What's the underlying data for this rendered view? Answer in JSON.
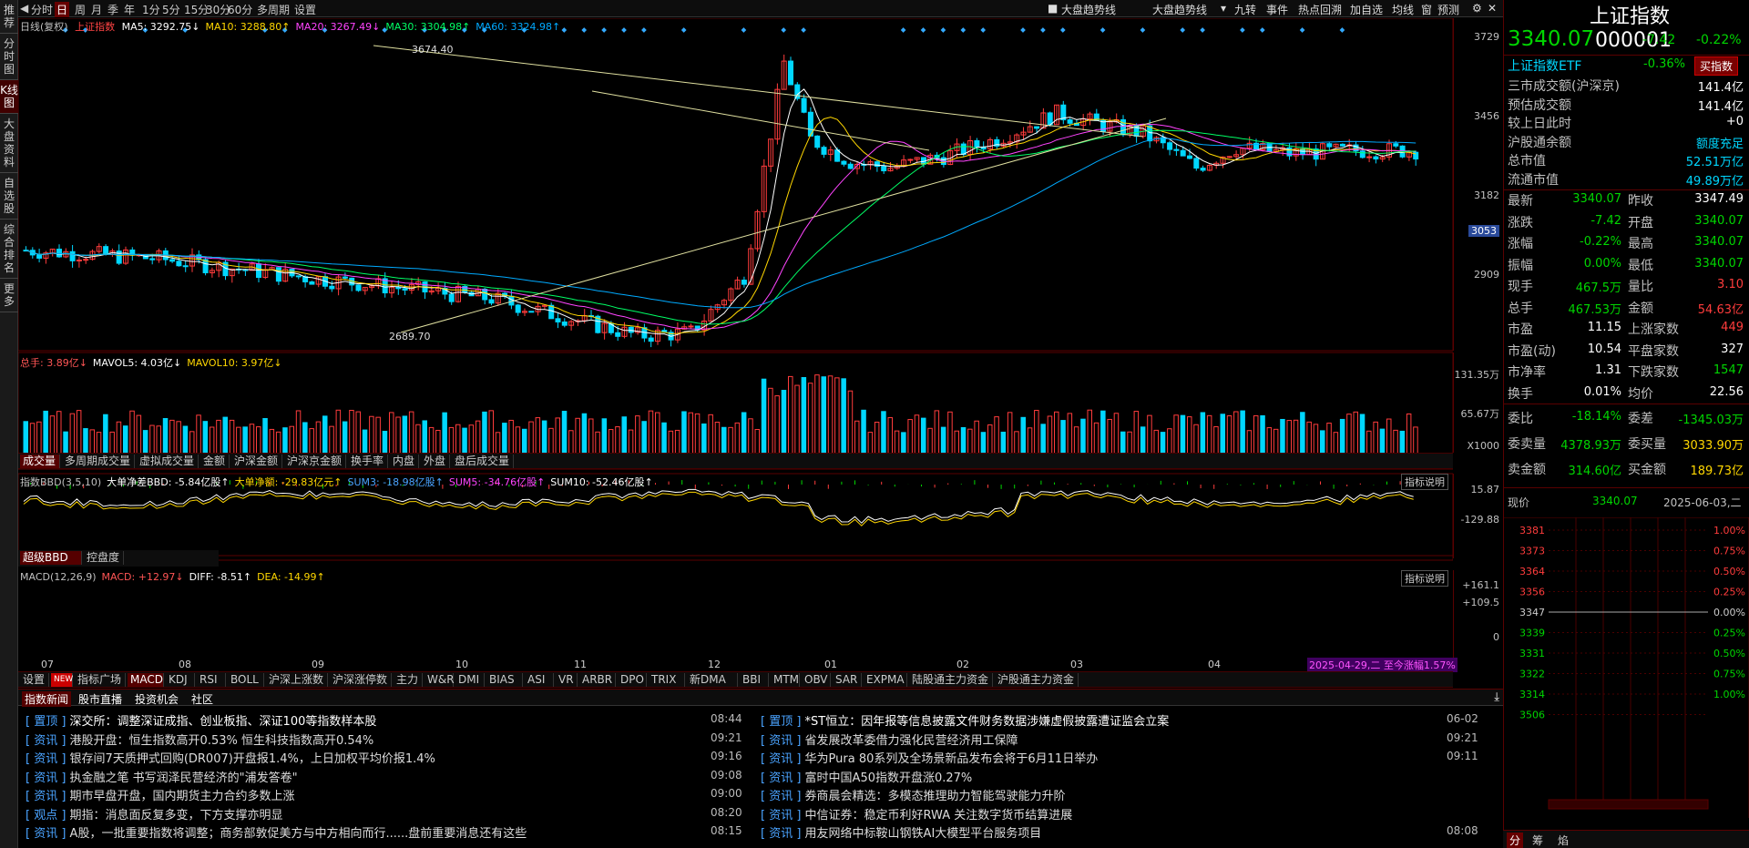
{
  "sidebar": [
    "推荐",
    "分时图",
    "K线图",
    "大盘资料",
    "自选股",
    "综合排名",
    "更多"
  ],
  "toolbar": {
    "periods": [
      "分时",
      "日",
      "周",
      "月",
      "季",
      "年",
      "1分",
      "5分",
      "15分",
      "30分",
      "60分",
      "多周期",
      "设置"
    ],
    "right": [
      "大盘趋势线",
      "大盘趋势线",
      "九转",
      "事件",
      "热点回溯",
      "加自选",
      "均线",
      "窗",
      "预测"
    ]
  },
  "kline": {
    "title": "日线(复权)",
    "name": "上证指数",
    "ma": [
      {
        "label": "MA5: 3292.75↓",
        "color": "#ffffff"
      },
      {
        "label": "MA10: 3288.80↑",
        "color": "#ffd700"
      },
      {
        "label": "MA20: 3267.49↓",
        "color": "#ff44ff"
      },
      {
        "label": "MA30: 3304.98↑",
        "color": "#00ff66"
      },
      {
        "label": "MA60: 3324.98↑",
        "color": "#00aaff"
      }
    ],
    "hi_label": "3674.40",
    "lo_label": "2689.70",
    "axis": [
      {
        "v": "3729",
        "y": 41
      },
      {
        "v": "3456",
        "y": 128
      },
      {
        "v": "3182",
        "y": 215
      },
      {
        "v": "3053",
        "y": 254
      },
      {
        "v": "2909",
        "y": 302
      }
    ],
    "axis_hl": "3053"
  },
  "volume": {
    "info": [
      {
        "t": "总手: 3.89亿↓",
        "c": "#ff5555"
      },
      {
        "t": "MAVOL5: 4.03亿↓",
        "c": "#ffffff"
      },
      {
        "t": "MAVOL10: 3.97亿↓",
        "c": "#ffd700"
      }
    ],
    "axis": [
      {
        "v": "131.35万",
        "y": 410
      },
      {
        "v": "65.67万",
        "y": 453
      },
      {
        "v": "X1000",
        "y": 490
      }
    ],
    "tabs": [
      "成交量",
      "多周期成交量",
      "虚拟成交量",
      "金额",
      "沪深金额",
      "沪深京金额",
      "换手率",
      "内盘",
      "外盘",
      "盘后成交量"
    ]
  },
  "bbd": {
    "info": [
      {
        "t": "指数BBD(3,5,10)",
        "c": "#c0c0c0"
      },
      {
        "t": "大单净差BBD: -5.84亿股↑",
        "c": "#ffffff"
      },
      {
        "t": "大单净额: -29.83亿元↑",
        "c": "#ffd700"
      },
      {
        "t": "SUM3: -18.98亿股↑",
        "c": "#4aa3ff"
      },
      {
        "t": "SUM5: -34.76亿股↑",
        "c": "#ff44ff"
      },
      {
        "t": "SUM10: -52.46亿股↑",
        "c": "#ffffff"
      }
    ],
    "help": "指标说明",
    "axis": [
      {
        "v": "15.87",
        "y": 538
      },
      {
        "v": "-129.88",
        "y": 571
      }
    ],
    "tabs": [
      "超级BBD",
      "控盘度"
    ]
  },
  "macd": {
    "info": [
      {
        "t": "MACD(12,26,9)",
        "c": "#c0c0c0"
      },
      {
        "t": "MACD: +12.97↓",
        "c": "#ff5555"
      },
      {
        "t": "DIFF: -8.51↑",
        "c": "#ffffff"
      },
      {
        "t": "DEA: -14.99↑",
        "c": "#ffd700"
      }
    ],
    "help": "指标说明",
    "axis": [
      {
        "v": "+161.1",
        "y": 643
      },
      {
        "v": "+109.5",
        "y": 662
      },
      {
        "v": "0",
        "y": 700
      }
    ],
    "months": [
      {
        "m": "07",
        "x": 25
      },
      {
        "m": "08",
        "x": 176
      },
      {
        "m": "09",
        "x": 322
      },
      {
        "m": "10",
        "x": 480
      },
      {
        "m": "11",
        "x": 610
      },
      {
        "m": "12",
        "x": 757
      },
      {
        "m": "01",
        "x": 885
      },
      {
        "m": "02",
        "x": 1030
      },
      {
        "m": "03",
        "x": 1155
      },
      {
        "m": "04",
        "x": 1306
      }
    ],
    "date_tag": "2025-04-29,二 至今涨幅1.57%",
    "tabs": [
      "设置",
      "NEW",
      "指标广场",
      "MACD",
      "KDJ",
      "RSI",
      "BOLL",
      "沪深上涨数",
      "沪深涨停数",
      "主力",
      "W&R",
      "DMI",
      "BIAS",
      "ASI",
      "VR",
      "ARBR",
      "DPO",
      "TRIX",
      "新DMA",
      "BBI",
      "MTM",
      "OBV",
      "SAR",
      "EXPMA",
      "陆股通主力资金",
      "沪股通主力资金"
    ]
  },
  "quote": {
    "title": "上证指数",
    "code": "000001",
    "price": "3340.07",
    "change": "-7.42",
    "pct": "-0.22%",
    "etf": "上证指数ETF",
    "etf_pct": "-0.36%",
    "buy_btn": "买指数",
    "stats": [
      [
        "三市成交额(沪深京)",
        "141.4亿"
      ],
      [
        "预估成交额",
        "141.4亿"
      ],
      [
        "较上日此时",
        "+0"
      ],
      [
        "沪股通余额",
        "额度充足"
      ],
      [
        "总市值",
        "52.51万亿"
      ],
      [
        "流通市值",
        "49.89万亿"
      ]
    ],
    "grid": [
      [
        "最新",
        "3340.07",
        "昨收",
        "3347.49"
      ],
      [
        "涨跌",
        "-7.42",
        "开盘",
        "3340.07"
      ],
      [
        "涨幅",
        "-0.22%",
        "最高",
        "3340.07"
      ],
      [
        "振幅",
        "0.00%",
        "最低",
        "3340.07"
      ],
      [
        "现手",
        "467.5万",
        "量比",
        "3.10"
      ],
      [
        "总手",
        "467.53万",
        "金额",
        "54.63亿"
      ],
      [
        "市盈",
        "11.15",
        "上涨家数",
        "449"
      ],
      [
        "市盈(动)",
        "10.54",
        "平盘家数",
        "327"
      ],
      [
        "市净率",
        "1.31",
        "下跌家数",
        "1547"
      ],
      [
        "换手",
        "0.01%",
        "均价",
        "22.56"
      ]
    ],
    "bid": [
      [
        "委比",
        "-18.14%",
        "委差",
        "-1345.03万"
      ],
      [
        "委卖量",
        "4378.93万",
        "委买量",
        "3033.90万"
      ],
      [
        "卖金额",
        "314.60亿",
        "买金额",
        "189.73亿"
      ]
    ],
    "mini_head": [
      "现价",
      "3340.07",
      "2025-06-03,二"
    ],
    "mini_left": [
      "3381",
      "3373",
      "3364",
      "3356",
      "3347",
      "3339",
      "3331",
      "3322",
      "3314",
      "3506"
    ],
    "mini_right": [
      "1.00%",
      "0.75%",
      "0.50%",
      "0.25%",
      "0.00%",
      "0.25%",
      "0.50%",
      "0.75%",
      "1.00%"
    ],
    "bottom_tabs": [
      "分",
      "筹",
      "焰"
    ]
  },
  "news": {
    "tabs": [
      "指数新闻",
      "股市直播",
      "投资机会",
      "社区"
    ],
    "left": [
      {
        "tag": "置顶",
        "text": "深交所：调整深证成指、创业板指、深证100等指数样本股",
        "time": "08:44"
      },
      {
        "tag": "资讯",
        "text": "港股开盘：恒生指数高开0.53% 恒生科技指数高开0.54%",
        "time": "09:21"
      },
      {
        "tag": "资讯",
        "text": "银存间7天质押式回购(DR007)开盘报1.4%，上日加权平均价报1.4%",
        "time": "09:16"
      },
      {
        "tag": "资讯",
        "text": "执金融之笔 书写润泽民营经济的\"浦发答卷\"",
        "time": "09:08"
      },
      {
        "tag": "资讯",
        "text": "期市早盘开盘，国内期货主力合约多数上涨",
        "time": "09:00"
      },
      {
        "tag": "观点",
        "text": "期指：消息面反复多变，下方支撑亦明显",
        "time": "08:20"
      },
      {
        "tag": "资讯",
        "text": "A股，一批重要指数将调整；商务部敦促美方与中方相向而行......盘前重要消息还有这些",
        "time": "08:15"
      }
    ],
    "right": [
      {
        "tag": "置顶",
        "text": "*ST恒立：因年报等信息披露文件财务数据涉嫌虚假披露遭证监会立案",
        "time": "06-02"
      },
      {
        "tag": "资讯",
        "text": "省发展改革委借力强化民营经济用工保障",
        "time": "09:21"
      },
      {
        "tag": "资讯",
        "text": "华为Pura 80系列及全场景新品发布会将于6月11日举办",
        "time": "09:11"
      },
      {
        "tag": "资讯",
        "text": "富时中国A50指数开盘涨0.27%",
        "time": ""
      },
      {
        "tag": "资讯",
        "text": "券商晨会精选：多模态推理助力智能驾驶能力升阶",
        "time": ""
      },
      {
        "tag": "资讯",
        "text": "中信证券：稳定币利好RWA 关注数字货币结算进展",
        "time": ""
      },
      {
        "tag": "资讯",
        "text": "用友网络中标鞍山钢铁AI大模型平台服务项目",
        "time": "08:08"
      }
    ]
  },
  "colors": {
    "up": "#ff3c3c",
    "down": "#00d7ff",
    "frame": "#5a0000"
  }
}
